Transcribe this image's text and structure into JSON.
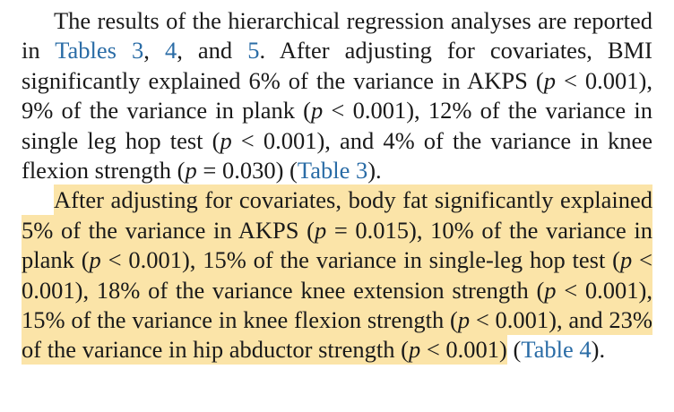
{
  "paragraphs": [
    [
      "The results of the hierarchical regression analyses are reported in ",
      "Tables 3",
      ", ",
      "4",
      ", and ",
      "5",
      ". After adjusting for covariates, BMI significantly explained 6% of the variance in AKPS (",
      "p",
      " < 0.001), 9% of the variance in plank (",
      "p",
      " < 0.001), 12% of the variance in single leg hop test (",
      "p",
      " < 0.001), and 4% of the variance in knee flexion strength (",
      "p",
      " = 0.030) (",
      "Table 3",
      ")."
    ],
    [
      "After adjusting for covariates, body fat significantly explained 5% of the variance in AKPS (",
      "p",
      " = 0.015), 10% of the variance in plank (",
      "p",
      " < 0.001), 15% of the variance in single-leg hop test (",
      "p",
      " < 0.001), 18% of the variance knee extension strength (",
      "p",
      " < 0.001), 15% of the variance in knee flexion strength (",
      "p",
      " < 0.001), and 23% of the variance in hip abductor strength (",
      "p",
      " < 0.001)",
      " (",
      "Table 4",
      ")."
    ]
  ]
}
